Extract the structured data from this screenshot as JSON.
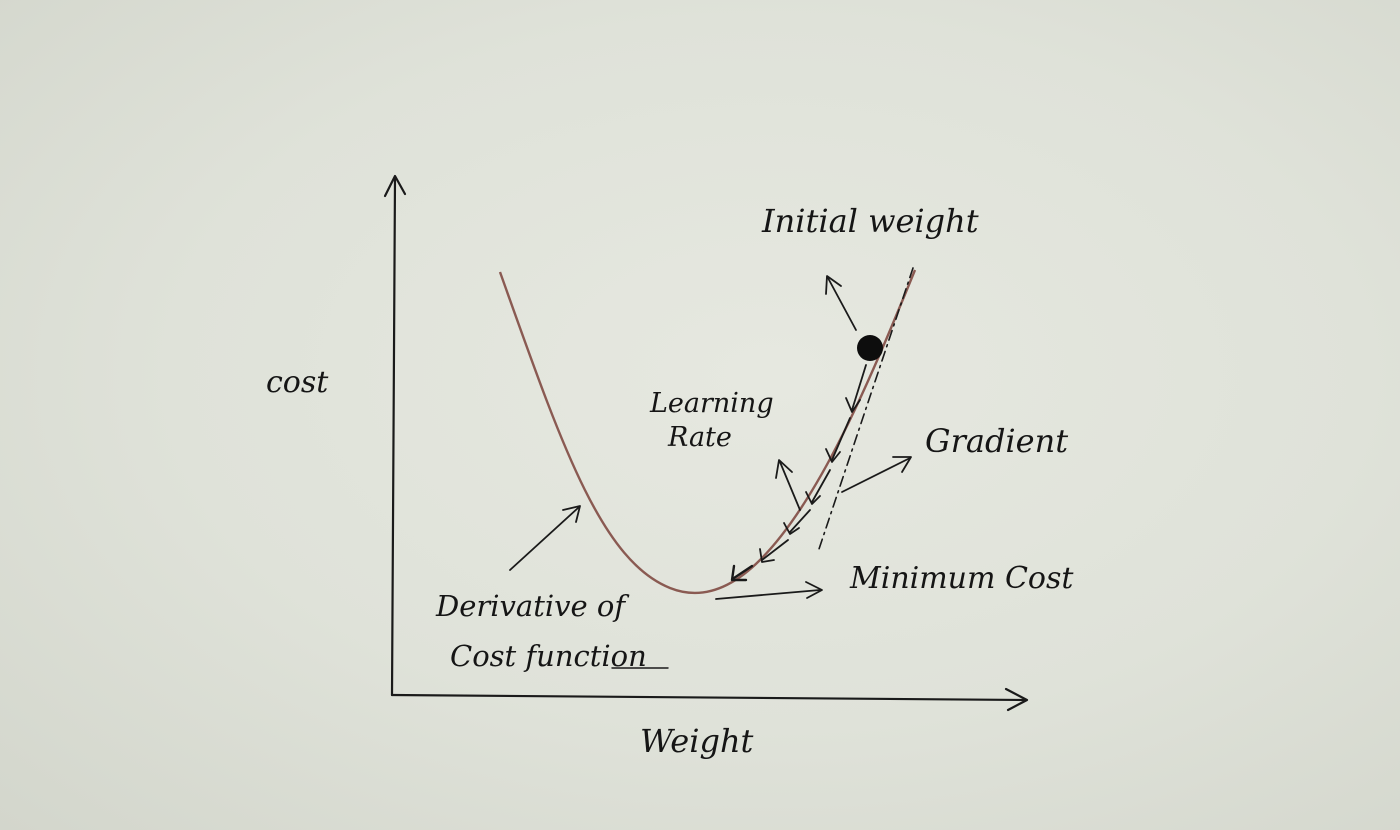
{
  "labels": {
    "y_axis": "cost",
    "x_axis": "Weight",
    "initial_weight": "Initial weight",
    "learning_rate_line1": "Learning",
    "learning_rate_line2": "Rate",
    "gradient": "Gradient",
    "minimum_cost": "Minimum Cost",
    "derivative_line1": "Derivative of",
    "derivative_line2": "Cost function"
  },
  "colors": {
    "paper": "#e3e5dd",
    "ink": "#1a1a1a",
    "curve": "#8a5a52"
  }
}
